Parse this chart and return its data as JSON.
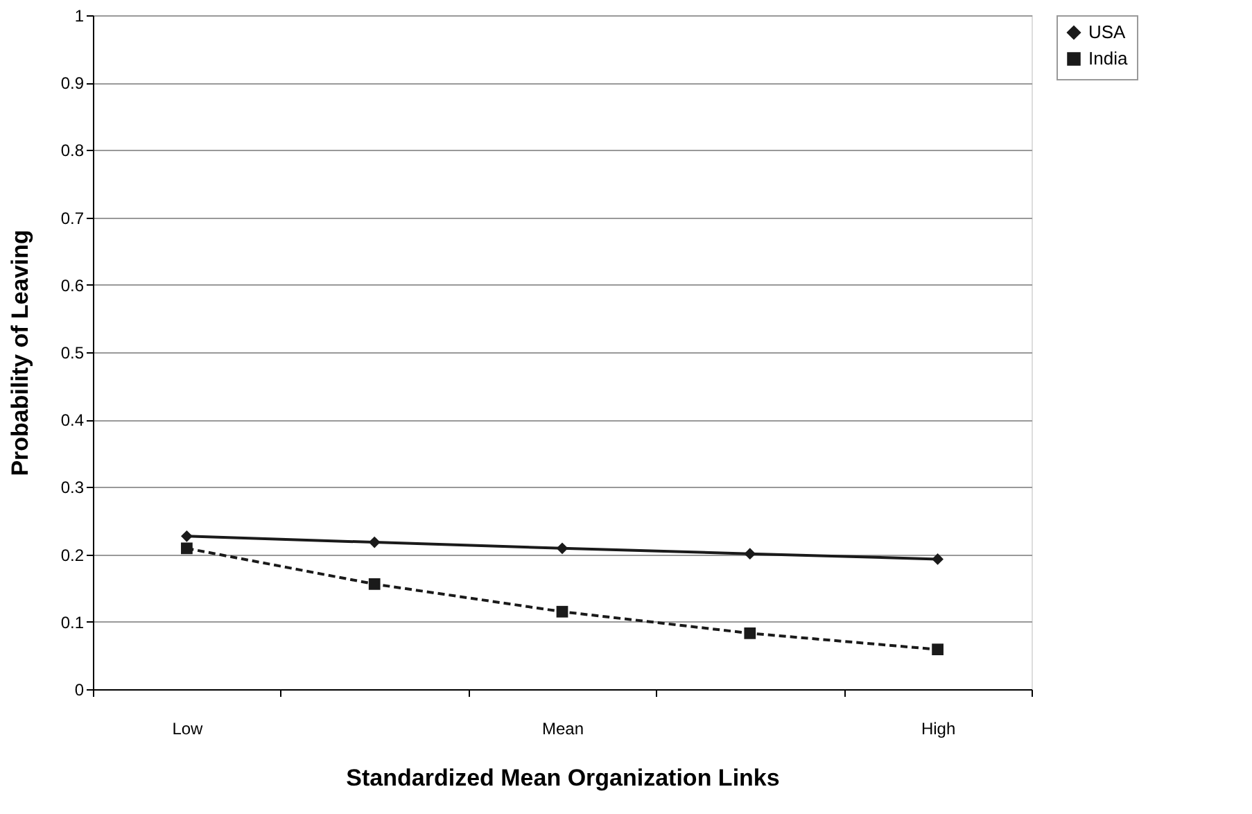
{
  "chart_data": {
    "type": "line",
    "xlabel": "Standardized Mean Organization Links",
    "ylabel": "Probability of Leaving",
    "categories": [
      "Low",
      null,
      "Mean",
      null,
      "High"
    ],
    "series": [
      {
        "name": "USA",
        "color": "#1a1a1a",
        "marker": "diamond",
        "line_style": "solid",
        "values": [
          0.227,
          0.218,
          0.209,
          0.201,
          0.193
        ]
      },
      {
        "name": "India",
        "color": "#1a1a1a",
        "marker": "square",
        "line_style": "dashed",
        "values": [
          0.209,
          0.156,
          0.115,
          0.083,
          0.059
        ]
      }
    ],
    "ylim": [
      0,
      1
    ],
    "yticks": [
      0,
      0.1,
      0.2,
      0.3,
      0.4,
      0.5,
      0.6,
      0.7,
      0.8,
      0.9,
      1
    ],
    "grid": "y",
    "legend": "right"
  }
}
